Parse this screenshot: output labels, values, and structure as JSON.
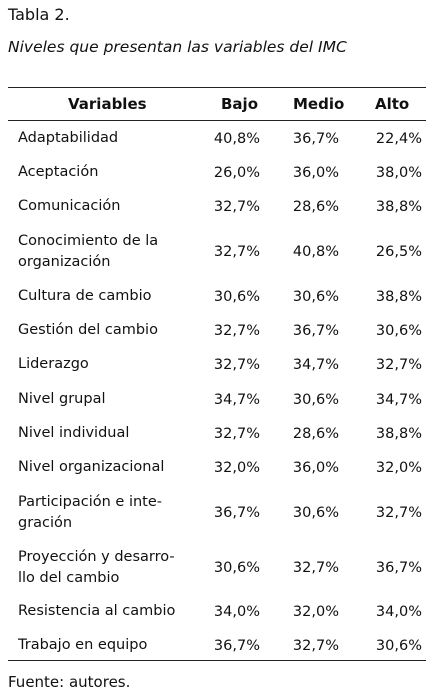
{
  "table_number": "Tabla 2.",
  "caption": "Niveles que presentan las variables del IMC",
  "headers": {
    "variables": "Variables",
    "bajo": "Bajo",
    "medio": "Medio",
    "alto": "Alto"
  },
  "rows": [
    {
      "label": "Adaptabilidad",
      "bajo": "40,8%",
      "medio": "36,7%",
      "alto": "22,4%"
    },
    {
      "label": "Aceptación",
      "bajo": "26,0%",
      "medio": "36,0%",
      "alto": "38,0%"
    },
    {
      "label": "Comunicación",
      "bajo": "32,7%",
      "medio": "28,6%",
      "alto": "38,8%"
    },
    {
      "label": "Conocimiento de la organización",
      "bajo": "32,7%",
      "medio": "40,8%",
      "alto": "26,5%"
    },
    {
      "label": "Cultura de cambio",
      "bajo": "30,6%",
      "medio": "30,6%",
      "alto": "38,8%"
    },
    {
      "label": "Gestión del cambio",
      "bajo": "32,7%",
      "medio": "36,7%",
      "alto": "30,6%"
    },
    {
      "label": "Liderazgo",
      "bajo": "32,7%",
      "medio": "34,7%",
      "alto": "32,7%"
    },
    {
      "label": "Nivel grupal",
      "bajo": "34,7%",
      "medio": "30,6%",
      "alto": "34,7%"
    },
    {
      "label": "Nivel individual",
      "bajo": "32,7%",
      "medio": "28,6%",
      "alto": "38,8%"
    },
    {
      "label": "Nivel organizacional",
      "bajo": "32,0%",
      "medio": "36,0%",
      "alto": "32,0%"
    },
    {
      "label": "Participación e inte-gración",
      "bajo": "36,7%",
      "medio": "30,6%",
      "alto": "32,7%"
    },
    {
      "label": "Proyección y desarro-llo del cambio",
      "bajo": "30,6%",
      "medio": "32,7%",
      "alto": "36,7%"
    },
    {
      "label": "Resistencia al cambio",
      "bajo": "34,0%",
      "medio": "32,0%",
      "alto": "34,0%"
    },
    {
      "label": "Trabajo en equipo",
      "bajo": "36,7%",
      "medio": "32,7%",
      "alto": "30,6%"
    }
  ],
  "source": "Fuente: autores."
}
